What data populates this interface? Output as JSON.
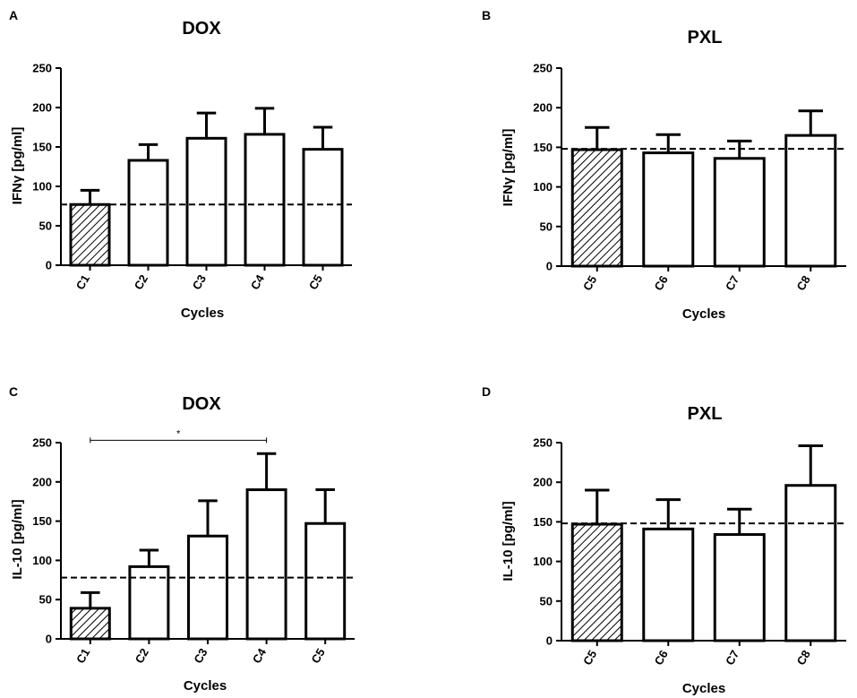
{
  "chart_data": [
    {
      "type": "bar",
      "panel": "A",
      "title": "DOX",
      "ylabel": "IFNγ [pg/ml]",
      "xlabel": "Cycles",
      "categories": [
        "C1",
        "C2",
        "C3",
        "C4",
        "C5"
      ],
      "values": [
        77,
        133,
        161,
        166,
        147
      ],
      "errors": [
        18,
        20,
        32,
        33,
        28
      ],
      "hatched": [
        true,
        false,
        false,
        false,
        false
      ],
      "baseline": 77,
      "ylim": [
        0,
        250
      ],
      "yticks": [
        "0",
        "50",
        "100",
        "150",
        "200",
        "250"
      ],
      "significance": null
    },
    {
      "type": "bar",
      "panel": "B",
      "title": "PXL",
      "ylabel": "IFNγ [pg/ml]",
      "xlabel": "Cycles",
      "categories": [
        "C5",
        "C6",
        "C7",
        "C8"
      ],
      "values": [
        147,
        143,
        136,
        165
      ],
      "errors": [
        28,
        23,
        22,
        31
      ],
      "hatched": [
        true,
        false,
        false,
        false
      ],
      "baseline": 148,
      "ylim": [
        0,
        250
      ],
      "yticks": [
        "0",
        "50",
        "100",
        "150",
        "200",
        "250"
      ],
      "significance": null
    },
    {
      "type": "bar",
      "panel": "C",
      "title": "DOX",
      "ylabel": "IL-10 [pg/ml]",
      "xlabel": "Cycles",
      "categories": [
        "C1",
        "C2",
        "C3",
        "C4",
        "C5"
      ],
      "values": [
        39,
        92,
        131,
        190,
        147
      ],
      "errors": [
        20,
        21,
        45,
        46,
        43
      ],
      "hatched": [
        true,
        false,
        false,
        false,
        false
      ],
      "baseline": 78,
      "ylim": [
        0,
        250
      ],
      "yticks": [
        "0",
        "50",
        "100",
        "150",
        "200",
        "250"
      ],
      "significance": {
        "from": 0,
        "to": 3,
        "label": "*",
        "value": 253
      }
    },
    {
      "type": "bar",
      "panel": "D",
      "title": "PXL",
      "ylabel": "IL-10 [pg/ml]",
      "xlabel": "Cycles",
      "categories": [
        "C5",
        "C6",
        "C7",
        "C8"
      ],
      "values": [
        147,
        141,
        134,
        196
      ],
      "errors": [
        43,
        37,
        32,
        50
      ],
      "hatched": [
        true,
        false,
        false,
        false
      ],
      "baseline": 148,
      "ylim": [
        0,
        250
      ],
      "yticks": [
        "0",
        "50",
        "100",
        "150",
        "200",
        "250"
      ],
      "significance": null
    }
  ]
}
